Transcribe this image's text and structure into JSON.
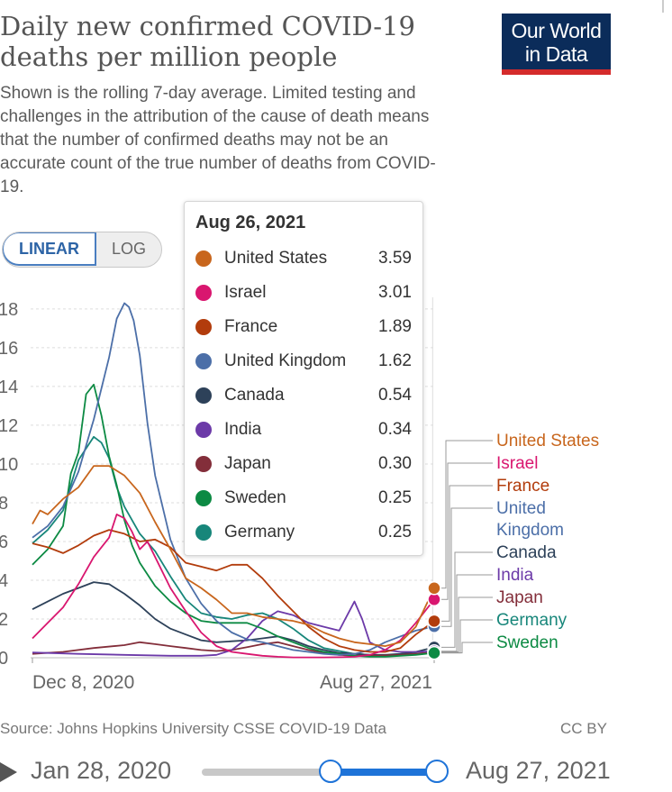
{
  "header": {
    "title": "Daily new confirmed COVID-19 deaths per million people",
    "subtitle": "Shown is the rolling 7-day average. Limited testing and challenges in the attribution of the cause of death means that the number of confirmed deaths may not be an accurate count of the true number of deaths from COVID-19.",
    "logo_line1": "Our World",
    "logo_line2": "in Data"
  },
  "scale_toggle": {
    "linear_label": "LINEAR",
    "log_label": "LOG",
    "selected": "LINEAR"
  },
  "tooltip": {
    "date": "Aug 26, 2021",
    "rows": [
      {
        "name": "United States",
        "value": "3.59",
        "color": "#c8661d"
      },
      {
        "name": "Israel",
        "value": "3.01",
        "color": "#d9166f"
      },
      {
        "name": "France",
        "value": "1.89",
        "color": "#b23c0c"
      },
      {
        "name": "United Kingdom",
        "value": "1.62",
        "color": "#4c6fa8"
      },
      {
        "name": "Canada",
        "value": "0.54",
        "color": "#2d4159"
      },
      {
        "name": "India",
        "value": "0.34",
        "color": "#6c3aa8"
      },
      {
        "name": "Japan",
        "value": "0.30",
        "color": "#832e3a"
      },
      {
        "name": "Sweden",
        "value": "0.25",
        "color": "#0c8a43"
      },
      {
        "name": "Germany",
        "value": "0.25",
        "color": "#17867a"
      }
    ]
  },
  "chart_data": {
    "type": "line",
    "title": "Daily new confirmed COVID-19 deaths per million people",
    "xlabel": "",
    "ylabel": "",
    "x_ticks": [
      "Dec 8, 2020",
      "Aug 27, 2021"
    ],
    "y_ticks": [
      0,
      2,
      4,
      6,
      8,
      10,
      12,
      14,
      16,
      18
    ],
    "ylim": [
      0,
      18.6
    ],
    "xlim": [
      0,
      262
    ],
    "grid": true,
    "x_unit": "days since Dec 8, 2020 (x=0 Dec 8, 2020; x=262 Aug 27, 2021)",
    "series": [
      {
        "name": "Germany",
        "color": "#17867a",
        "x": [
          0,
          10,
          20,
          30,
          40,
          45,
          50,
          55,
          60,
          70,
          80,
          90,
          100,
          110,
          120,
          130,
          140,
          150,
          160,
          170,
          180,
          190,
          200,
          210,
          220,
          230,
          240,
          250,
          262
        ],
        "y": [
          5.9,
          6.6,
          7.6,
          10.2,
          11.4,
          11.1,
          10.3,
          8.8,
          7.8,
          6.4,
          5.5,
          4.2,
          3.0,
          2.3,
          2.1,
          2.0,
          2.2,
          2.3,
          2.0,
          1.5,
          0.9,
          0.5,
          0.35,
          0.2,
          0.15,
          0.12,
          0.15,
          0.22,
          0.25
        ]
      },
      {
        "name": "Canada",
        "color": "#2d4159",
        "x": [
          0,
          10,
          20,
          30,
          40,
          50,
          60,
          70,
          80,
          90,
          100,
          110,
          120,
          130,
          140,
          150,
          160,
          170,
          180,
          190,
          200,
          210,
          220,
          230,
          240,
          250,
          262
        ],
        "y": [
          2.5,
          2.9,
          3.3,
          3.6,
          3.9,
          3.8,
          3.3,
          2.7,
          2.0,
          1.5,
          1.2,
          0.9,
          0.8,
          0.85,
          0.9,
          1.0,
          1.1,
          0.9,
          0.6,
          0.4,
          0.25,
          0.2,
          0.15,
          0.15,
          0.2,
          0.3,
          0.54
        ]
      },
      {
        "name": "Japan",
        "color": "#832e3a",
        "x": [
          0,
          20,
          40,
          60,
          70,
          80,
          90,
          100,
          110,
          120,
          130,
          140,
          150,
          160,
          170,
          180,
          190,
          200,
          210,
          220,
          230,
          240,
          250,
          262
        ],
        "y": [
          0.2,
          0.3,
          0.5,
          0.65,
          0.8,
          0.7,
          0.6,
          0.5,
          0.4,
          0.35,
          0.4,
          0.55,
          0.7,
          0.8,
          0.6,
          0.4,
          0.25,
          0.15,
          0.1,
          0.1,
          0.12,
          0.15,
          0.2,
          0.3
        ]
      },
      {
        "name": "India",
        "color": "#6c3aa8",
        "x": [
          0,
          30,
          60,
          90,
          110,
          120,
          130,
          140,
          150,
          160,
          170,
          180,
          190,
          200,
          210,
          215,
          220,
          230,
          240,
          250,
          262
        ],
        "y": [
          0.27,
          0.2,
          0.15,
          0.1,
          0.1,
          0.15,
          0.4,
          1.0,
          1.9,
          2.4,
          2.2,
          1.8,
          1.6,
          1.4,
          2.9,
          2.0,
          0.8,
          0.4,
          0.3,
          0.3,
          0.34
        ]
      },
      {
        "name": "Sweden",
        "color": "#0c8a43",
        "x": [
          0,
          10,
          20,
          25,
          30,
          35,
          40,
          45,
          50,
          55,
          60,
          65,
          70,
          80,
          90,
          100,
          110,
          120,
          130,
          140,
          150,
          160,
          170,
          180,
          190,
          200,
          210,
          220,
          230,
          240,
          250,
          262
        ],
        "y": [
          4.8,
          5.6,
          6.8,
          9.5,
          10.6,
          13.6,
          14.1,
          12.5,
          10.4,
          8.9,
          7.1,
          5.8,
          4.9,
          3.7,
          2.9,
          2.3,
          1.9,
          1.8,
          1.8,
          1.8,
          1.5,
          1.1,
          0.8,
          0.5,
          0.3,
          0.2,
          0.1,
          0.05,
          0.05,
          0.1,
          0.15,
          0.25
        ]
      },
      {
        "name": "United Kingdom",
        "color": "#4c6fa8",
        "x": [
          0,
          10,
          20,
          30,
          40,
          50,
          55,
          60,
          63,
          66,
          70,
          75,
          80,
          90,
          100,
          110,
          120,
          130,
          140,
          150,
          160,
          170,
          180,
          190,
          200,
          210,
          220,
          230,
          240,
          250,
          262
        ],
        "y": [
          6.2,
          6.8,
          7.8,
          9.6,
          12.3,
          15.5,
          17.5,
          18.3,
          18.1,
          17.4,
          15.6,
          12.1,
          9.4,
          6.1,
          4.1,
          2.8,
          1.9,
          1.3,
          0.95,
          0.8,
          0.6,
          0.4,
          0.3,
          0.2,
          0.15,
          0.2,
          0.4,
          0.8,
          1.1,
          1.4,
          1.62
        ]
      },
      {
        "name": "France",
        "color": "#b23c0c",
        "x": [
          0,
          10,
          20,
          30,
          40,
          50,
          60,
          70,
          80,
          90,
          100,
          110,
          120,
          130,
          140,
          150,
          160,
          170,
          180,
          190,
          200,
          210,
          220,
          230,
          240,
          250,
          262
        ],
        "y": [
          5.9,
          5.7,
          5.4,
          5.8,
          6.3,
          6.6,
          6.4,
          6.0,
          6.1,
          5.7,
          4.9,
          4.7,
          4.5,
          4.8,
          4.8,
          4.1,
          3.2,
          2.4,
          1.6,
          1.0,
          0.6,
          0.4,
          0.3,
          0.3,
          0.5,
          1.2,
          1.89
        ]
      },
      {
        "name": "Israel",
        "color": "#d9166f",
        "x": [
          0,
          10,
          20,
          30,
          40,
          50,
          55,
          60,
          65,
          70,
          75,
          80,
          90,
          100,
          110,
          120,
          130,
          140,
          150,
          160,
          170,
          180,
          190,
          200,
          210,
          220,
          230,
          240,
          250,
          262
        ],
        "y": [
          1.0,
          1.8,
          2.6,
          3.8,
          5.2,
          6.2,
          7.4,
          7.2,
          6.5,
          5.6,
          6.0,
          5.2,
          3.6,
          2.4,
          1.3,
          0.6,
          0.3,
          0.2,
          0.1,
          0.05,
          0.02,
          0.02,
          0.02,
          0.03,
          0.05,
          0.15,
          0.4,
          0.9,
          1.8,
          3.01
        ]
      },
      {
        "name": "United States",
        "color": "#c8661d",
        "x": [
          0,
          5,
          10,
          20,
          30,
          40,
          50,
          60,
          70,
          80,
          90,
          100,
          110,
          120,
          130,
          140,
          150,
          160,
          170,
          180,
          190,
          200,
          210,
          220,
          230,
          240,
          250,
          262
        ],
        "y": [
          6.9,
          7.6,
          7.4,
          8.2,
          8.8,
          9.9,
          9.9,
          9.4,
          8.5,
          7.0,
          5.6,
          4.1,
          3.6,
          3.0,
          2.3,
          2.3,
          2.1,
          2.0,
          1.9,
          1.7,
          1.3,
          1.0,
          0.8,
          0.7,
          0.6,
          0.8,
          1.6,
          3.59
        ]
      }
    ],
    "end_labels": [
      {
        "name": "United States",
        "color": "#c8661d"
      },
      {
        "name": "Israel",
        "color": "#d9166f"
      },
      {
        "name": "France",
        "color": "#b23c0c"
      },
      {
        "name": "United",
        "color": "#4c6fa8"
      },
      {
        "name": "Kingdom",
        "color": "#4c6fa8"
      },
      {
        "name": "Canada",
        "color": "#2d4159"
      },
      {
        "name": "India",
        "color": "#6c3aa8"
      },
      {
        "name": "Japan",
        "color": "#832e3a"
      },
      {
        "name": "Germany",
        "color": "#17867a"
      },
      {
        "name": "Sweden",
        "color": "#0c8a43"
      }
    ]
  },
  "footer": {
    "source": "Source: Johns Hopkins University CSSE COVID-19 Data",
    "license": "CC BY"
  },
  "timeline": {
    "start_label": "Jan 28, 2020",
    "end_label": "Aug 27, 2021"
  }
}
